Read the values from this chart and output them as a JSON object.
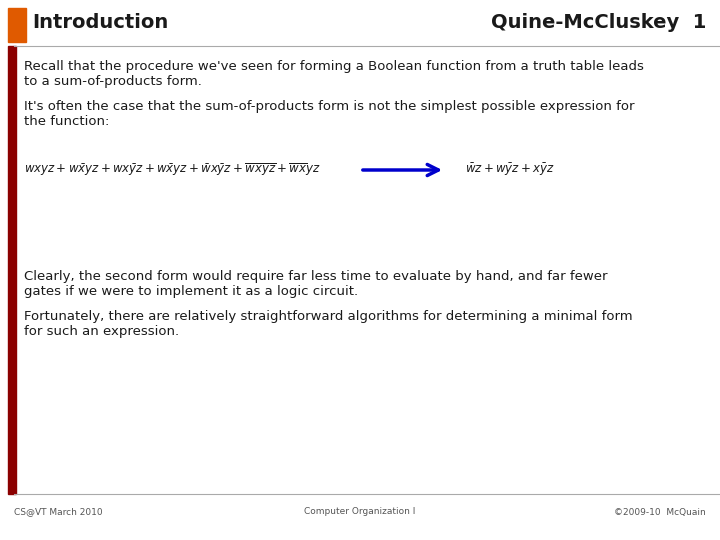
{
  "title": "Introduction",
  "title_right": "Quine-McCluskey  1",
  "header_accent_color": "#E05A00",
  "left_bar_color": "#8B0000",
  "bg_color": "#FFFFFF",
  "footer_left": "CS@VT March 2010",
  "footer_center": "Computer Organization I",
  "footer_right": "©2009-10  McQuain",
  "body_text1_line1": "Recall that the procedure we've seen for forming a Boolean function from a truth table leads",
  "body_text1_line2": "to a sum-of-products form.",
  "body_text2_line1": "It's often the case that the sum-of-products form is not the simplest possible expression for",
  "body_text2_line2": "the function:",
  "body_text3_line1": "Clearly, the second form would require far less time to evaluate by hand, and far fewer",
  "body_text3_line2": "gates if we were to implement it as a logic circuit.",
  "body_text4_line1": "Fortunately, there are relatively straightforward algorithms for determining a minimal form",
  "body_text4_line2": "for such an expression.",
  "text_color": "#1A1A1A",
  "footer_color": "#555555",
  "arrow_color": "#0000CC",
  "separator_color": "#AAAAAA",
  "font_size_title": 14,
  "font_size_body": 9.5,
  "font_size_math": 8.5,
  "font_size_footer": 6.5
}
